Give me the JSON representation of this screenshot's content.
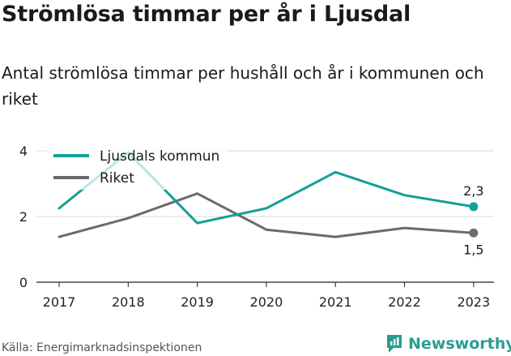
{
  "title": "Strömlösa timmar per år i Ljusdal",
  "subtitle": "Antal strömlösa timmar per hushåll och år i kommunen och riket",
  "source": "Källa: Energimarknadsinspektionen",
  "brand": {
    "name": "Newsworthy",
    "icon": "newsworthy-logo-icon"
  },
  "colors": {
    "ljusdal": "#12a097",
    "riket": "#6b6b6b",
    "grid": "#d8d8d8",
    "axis": "#222222"
  },
  "chart_data": {
    "type": "line",
    "categories": [
      "2017",
      "2018",
      "2019",
      "2020",
      "2021",
      "2022",
      "2023"
    ],
    "y_ticks": [
      "0",
      "2",
      "4"
    ],
    "ylim": [
      0,
      4
    ],
    "grid": true,
    "legend_position": "top-left",
    "series": [
      {
        "name": "Ljusdals kommun",
        "values": [
          2.25,
          3.95,
          1.8,
          2.25,
          3.35,
          2.65,
          2.3
        ],
        "end_label": "2,3"
      },
      {
        "name": "Riket",
        "values": [
          1.38,
          1.95,
          2.7,
          1.6,
          1.38,
          1.65,
          1.5
        ],
        "end_label": "1,5"
      }
    ]
  }
}
